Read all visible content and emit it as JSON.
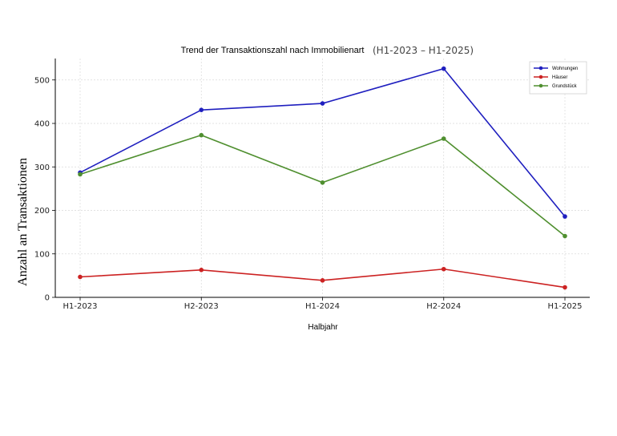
{
  "chart_data": {
    "type": "line",
    "title": "Trend der Transaktionszahl nach Immobilienart",
    "subtitle": "(H1-2023 – H1-2025)",
    "xlabel": "Halbjahr",
    "ylabel": "Anzahl an Transaktionen",
    "categories": [
      "H1-2023",
      "H2-2023",
      "H1-2024",
      "H2-2024",
      "H1-2025"
    ],
    "ylim": [
      0,
      550
    ],
    "yticks": [
      0,
      100,
      200,
      300,
      400,
      500
    ],
    "grid": true,
    "legend_position": "top-right",
    "series": [
      {
        "name": "Wohnungen",
        "color": "#1f1fbf",
        "values": [
          287,
          431,
          446,
          526,
          186
        ]
      },
      {
        "name": "Häuser",
        "color": "#cc2222",
        "values": [
          47,
          63,
          39,
          65,
          23
        ]
      },
      {
        "name": "Grundstück",
        "color": "#4f8f2f",
        "values": [
          283,
          373,
          264,
          365,
          141
        ]
      }
    ]
  }
}
